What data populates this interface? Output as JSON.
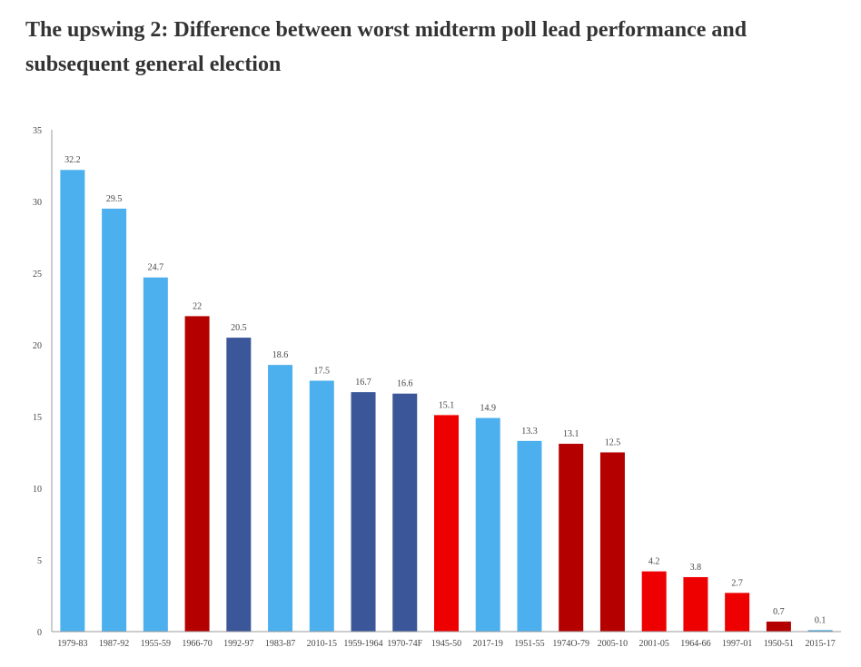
{
  "chart_data": {
    "type": "bar",
    "title": "The upswing 2: Difference between worst midterm poll lead performance and subsequent general election",
    "xlabel": "",
    "ylabel": "",
    "ylim": [
      0,
      35
    ],
    "yticks": [
      0,
      5,
      10,
      15,
      20,
      25,
      30,
      35
    ],
    "grid": false,
    "legend": "none",
    "categories": [
      "1979-83",
      "1987-92",
      "1955-59",
      "1966-70",
      "1992-97",
      "1983-87",
      "2010-15",
      "1959-1964",
      "1970-74F",
      "1945-50",
      "2017-19",
      "1951-55",
      "1974O-79",
      "2005-10",
      "2001-05",
      "1964-66",
      "1997-01",
      "1950-51",
      "2015-17"
    ],
    "values": [
      32.2,
      29.5,
      24.7,
      22,
      20.5,
      18.6,
      17.5,
      16.7,
      16.6,
      15.1,
      14.9,
      13.3,
      13.1,
      12.5,
      4.2,
      3.8,
      2.7,
      0.7,
      0.1
    ],
    "data_labels": [
      "32.2",
      "29.5",
      "24.7",
      "22",
      "20.5",
      "18.6",
      "17.5",
      "16.7",
      "16.6",
      "15.1",
      "14.9",
      "13.3",
      "13.1",
      "12.5",
      "4.2",
      "3.8",
      "2.7",
      "0.7",
      "0.1"
    ],
    "bar_colors": [
      "#4db0ee",
      "#4db0ee",
      "#4db0ee",
      "#b50000",
      "#3b5799",
      "#4db0ee",
      "#4db0ee",
      "#3b5799",
      "#3b5799",
      "#ee0000",
      "#4db0ee",
      "#4db0ee",
      "#b50000",
      "#b50000",
      "#ee0000",
      "#ee0000",
      "#ee0000",
      "#b50000",
      "#3d9fd8"
    ]
  }
}
